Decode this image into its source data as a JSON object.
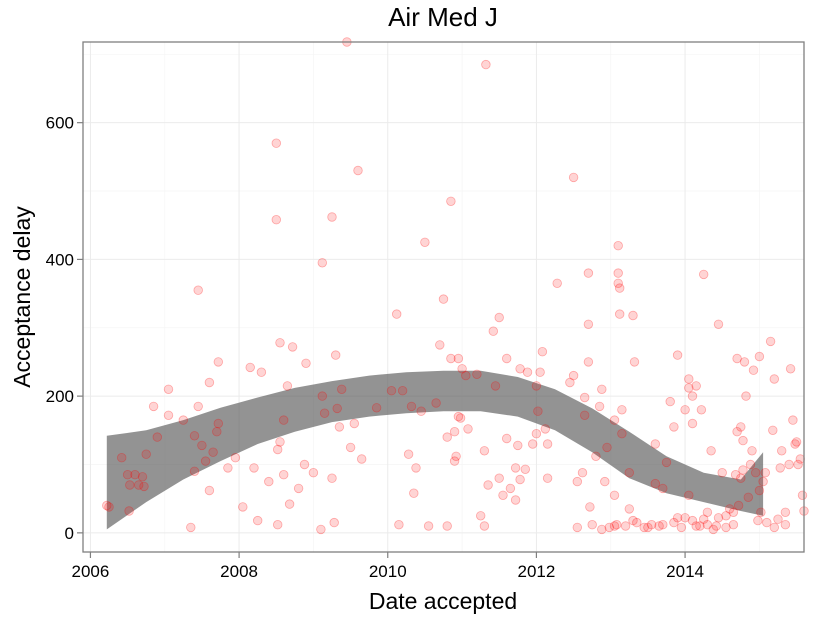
{
  "chart_data": {
    "type": "scatter",
    "title": "Air Med J",
    "xlabel": "Date accepted",
    "ylabel": "Acceptance delay",
    "xlim": [
      2005.9,
      2015.6
    ],
    "ylim": [
      -28,
      718
    ],
    "x_ticks": [
      "2006",
      "2008",
      "2010",
      "2012",
      "2014"
    ],
    "y_ticks": [
      "0",
      "200",
      "400",
      "600"
    ],
    "grid": true,
    "point_color": "#ff0000",
    "band_color": "#595959",
    "points": [
      [
        2006.22,
        40
      ],
      [
        2006.25,
        38
      ],
      [
        2006.42,
        110
      ],
      [
        2006.5,
        85
      ],
      [
        2006.52,
        32
      ],
      [
        2006.53,
        70
      ],
      [
        2006.6,
        85
      ],
      [
        2006.65,
        70
      ],
      [
        2006.7,
        82
      ],
      [
        2006.72,
        68
      ],
      [
        2006.75,
        115
      ],
      [
        2006.85,
        185
      ],
      [
        2006.9,
        140
      ],
      [
        2007.05,
        210
      ],
      [
        2007.05,
        172
      ],
      [
        2007.25,
        165
      ],
      [
        2007.35,
        8
      ],
      [
        2007.4,
        90
      ],
      [
        2007.4,
        142
      ],
      [
        2007.45,
        355
      ],
      [
        2007.45,
        185
      ],
      [
        2007.5,
        128
      ],
      [
        2007.55,
        105
      ],
      [
        2007.6,
        62
      ],
      [
        2007.6,
        220
      ],
      [
        2007.65,
        118
      ],
      [
        2007.7,
        148
      ],
      [
        2007.72,
        160
      ],
      [
        2007.72,
        250
      ],
      [
        2007.85,
        95
      ],
      [
        2007.95,
        110
      ],
      [
        2008.05,
        38
      ],
      [
        2008.15,
        242
      ],
      [
        2008.2,
        95
      ],
      [
        2008.25,
        18
      ],
      [
        2008.3,
        235
      ],
      [
        2008.4,
        75
      ],
      [
        2008.5,
        458
      ],
      [
        2008.5,
        570
      ],
      [
        2008.52,
        12
      ],
      [
        2008.52,
        122
      ],
      [
        2008.55,
        133
      ],
      [
        2008.55,
        278
      ],
      [
        2008.6,
        85
      ],
      [
        2008.6,
        165
      ],
      [
        2008.65,
        215
      ],
      [
        2008.68,
        42
      ],
      [
        2008.72,
        272
      ],
      [
        2008.8,
        65
      ],
      [
        2008.88,
        100
      ],
      [
        2008.9,
        248
      ],
      [
        2009.0,
        88
      ],
      [
        2009.1,
        5
      ],
      [
        2009.12,
        395
      ],
      [
        2009.12,
        200
      ],
      [
        2009.15,
        175
      ],
      [
        2009.25,
        462
      ],
      [
        2009.25,
        80
      ],
      [
        2009.28,
        15
      ],
      [
        2009.3,
        260
      ],
      [
        2009.32,
        182
      ],
      [
        2009.35,
        155
      ],
      [
        2009.38,
        210
      ],
      [
        2009.45,
        718
      ],
      [
        2009.5,
        125
      ],
      [
        2009.55,
        160
      ],
      [
        2009.6,
        530
      ],
      [
        2009.65,
        108
      ],
      [
        2009.85,
        183
      ],
      [
        2010.05,
        208
      ],
      [
        2010.12,
        320
      ],
      [
        2010.15,
        12
      ],
      [
        2010.2,
        208
      ],
      [
        2010.28,
        115
      ],
      [
        2010.32,
        185
      ],
      [
        2010.35,
        58
      ],
      [
        2010.38,
        95
      ],
      [
        2010.45,
        178
      ],
      [
        2010.5,
        425
      ],
      [
        2010.55,
        10
      ],
      [
        2010.65,
        190
      ],
      [
        2010.7,
        275
      ],
      [
        2010.75,
        342
      ],
      [
        2010.8,
        140
      ],
      [
        2010.8,
        10
      ],
      [
        2010.85,
        485
      ],
      [
        2010.85,
        255
      ],
      [
        2010.9,
        105
      ],
      [
        2010.9,
        148
      ],
      [
        2010.92,
        112
      ],
      [
        2010.95,
        255
      ],
      [
        2010.95,
        170
      ],
      [
        2010.98,
        168
      ],
      [
        2011.0,
        240
      ],
      [
        2011.05,
        230
      ],
      [
        2011.08,
        152
      ],
      [
        2011.2,
        232
      ],
      [
        2011.25,
        25
      ],
      [
        2011.3,
        10
      ],
      [
        2011.3,
        120
      ],
      [
        2011.32,
        685
      ],
      [
        2011.35,
        70
      ],
      [
        2011.42,
        295
      ],
      [
        2011.45,
        215
      ],
      [
        2011.5,
        315
      ],
      [
        2011.5,
        80
      ],
      [
        2011.55,
        55
      ],
      [
        2011.6,
        138
      ],
      [
        2011.6,
        255
      ],
      [
        2011.65,
        65
      ],
      [
        2011.72,
        48
      ],
      [
        2011.72,
        95
      ],
      [
        2011.75,
        128
      ],
      [
        2011.78,
        78
      ],
      [
        2011.78,
        240
      ],
      [
        2011.85,
        93
      ],
      [
        2011.88,
        235
      ],
      [
        2011.95,
        130
      ],
      [
        2012.0,
        145
      ],
      [
        2012.0,
        215
      ],
      [
        2012.02,
        178
      ],
      [
        2012.05,
        235
      ],
      [
        2012.08,
        265
      ],
      [
        2012.12,
        152
      ],
      [
        2012.15,
        80
      ],
      [
        2012.15,
        130
      ],
      [
        2012.28,
        365
      ],
      [
        2012.45,
        220
      ],
      [
        2012.5,
        520
      ],
      [
        2012.5,
        230
      ],
      [
        2012.55,
        8
      ],
      [
        2012.55,
        75
      ],
      [
        2012.62,
        88
      ],
      [
        2012.65,
        198
      ],
      [
        2012.65,
        172
      ],
      [
        2012.7,
        305
      ],
      [
        2012.7,
        250
      ],
      [
        2012.7,
        380
      ],
      [
        2012.72,
        38
      ],
      [
        2012.75,
        12
      ],
      [
        2012.8,
        112
      ],
      [
        2012.85,
        185
      ],
      [
        2012.88,
        210
      ],
      [
        2012.88,
        5
      ],
      [
        2012.92,
        75
      ],
      [
        2012.95,
        125
      ],
      [
        2012.98,
        8
      ],
      [
        2013.05,
        55
      ],
      [
        2013.05,
        10
      ],
      [
        2013.05,
        165
      ],
      [
        2013.08,
        12
      ],
      [
        2013.1,
        380
      ],
      [
        2013.1,
        365
      ],
      [
        2013.1,
        420
      ],
      [
        2013.12,
        320
      ],
      [
        2013.12,
        358
      ],
      [
        2013.15,
        145
      ],
      [
        2013.15,
        180
      ],
      [
        2013.2,
        10
      ],
      [
        2013.25,
        88
      ],
      [
        2013.25,
        35
      ],
      [
        2013.3,
        318
      ],
      [
        2013.3,
        18
      ],
      [
        2013.32,
        250
      ],
      [
        2013.35,
        15
      ],
      [
        2013.45,
        8
      ],
      [
        2013.5,
        8
      ],
      [
        2013.55,
        12
      ],
      [
        2013.6,
        130
      ],
      [
        2013.6,
        72
      ],
      [
        2013.65,
        10
      ],
      [
        2013.7,
        65
      ],
      [
        2013.7,
        12
      ],
      [
        2013.75,
        103
      ],
      [
        2013.8,
        192
      ],
      [
        2013.85,
        15
      ],
      [
        2013.85,
        155
      ],
      [
        2013.9,
        22
      ],
      [
        2013.9,
        260
      ],
      [
        2013.95,
        8
      ],
      [
        2014.0,
        22
      ],
      [
        2014.0,
        180
      ],
      [
        2014.05,
        212
      ],
      [
        2014.05,
        225
      ],
      [
        2014.05,
        55
      ],
      [
        2014.1,
        160
      ],
      [
        2014.1,
        18
      ],
      [
        2014.1,
        200
      ],
      [
        2014.15,
        215
      ],
      [
        2014.15,
        10
      ],
      [
        2014.2,
        10
      ],
      [
        2014.22,
        180
      ],
      [
        2014.25,
        20
      ],
      [
        2014.25,
        378
      ],
      [
        2014.3,
        30
      ],
      [
        2014.3,
        12
      ],
      [
        2014.35,
        120
      ],
      [
        2014.38,
        5
      ],
      [
        2014.42,
        10
      ],
      [
        2014.45,
        22
      ],
      [
        2014.45,
        305
      ],
      [
        2014.5,
        88
      ],
      [
        2014.55,
        8
      ],
      [
        2014.55,
        25
      ],
      [
        2014.6,
        35
      ],
      [
        2014.65,
        12
      ],
      [
        2014.65,
        30
      ],
      [
        2014.68,
        85
      ],
      [
        2014.7,
        148
      ],
      [
        2014.7,
        255
      ],
      [
        2014.72,
        40
      ],
      [
        2014.75,
        155
      ],
      [
        2014.75,
        80
      ],
      [
        2014.78,
        135
      ],
      [
        2014.78,
        92
      ],
      [
        2014.8,
        250
      ],
      [
        2014.82,
        200
      ],
      [
        2014.85,
        52
      ],
      [
        2014.88,
        100
      ],
      [
        2014.9,
        120
      ],
      [
        2014.92,
        238
      ],
      [
        2014.95,
        88
      ],
      [
        2014.98,
        18
      ],
      [
        2015.0,
        258
      ],
      [
        2015.0,
        62
      ],
      [
        2015.02,
        30
      ],
      [
        2015.05,
        75
      ],
      [
        2015.08,
        88
      ],
      [
        2015.1,
        15
      ],
      [
        2015.15,
        280
      ],
      [
        2015.18,
        150
      ],
      [
        2015.2,
        8
      ],
      [
        2015.2,
        225
      ],
      [
        2015.25,
        20
      ],
      [
        2015.28,
        95
      ],
      [
        2015.3,
        120
      ],
      [
        2015.35,
        12
      ],
      [
        2015.35,
        30
      ],
      [
        2015.4,
        100
      ],
      [
        2015.42,
        240
      ],
      [
        2015.45,
        165
      ],
      [
        2015.48,
        130
      ],
      [
        2015.5,
        133
      ],
      [
        2015.52,
        100
      ],
      [
        2015.55,
        108
      ],
      [
        2015.58,
        55
      ],
      [
        2015.6,
        32
      ]
    ],
    "smooth_band": {
      "x": [
        2006.22,
        2006.75,
        2007.25,
        2007.75,
        2008.25,
        2008.75,
        2009.25,
        2009.75,
        2010.25,
        2010.75,
        2011.25,
        2011.75,
        2012.25,
        2012.75,
        2013.25,
        2013.75,
        2014.25,
        2014.75,
        2015.05
      ],
      "lower": [
        5,
        45,
        78,
        105,
        130,
        148,
        162,
        170,
        175,
        178,
        178,
        170,
        150,
        118,
        80,
        58,
        45,
        32,
        25
      ],
      "upper": [
        142,
        150,
        165,
        183,
        198,
        212,
        222,
        230,
        235,
        237,
        237,
        228,
        210,
        182,
        148,
        112,
        88,
        78,
        118
      ]
    }
  }
}
